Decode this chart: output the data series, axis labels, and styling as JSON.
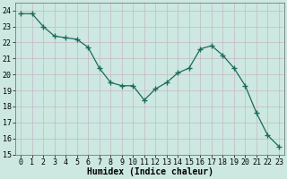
{
  "x": [
    0,
    1,
    2,
    3,
    4,
    5,
    6,
    7,
    8,
    9,
    10,
    11,
    12,
    13,
    14,
    15,
    16,
    17,
    18,
    19,
    20,
    21,
    22,
    23
  ],
  "y": [
    23.8,
    23.8,
    23.0,
    22.4,
    22.3,
    22.2,
    21.7,
    20.4,
    19.5,
    19.3,
    19.3,
    18.4,
    19.1,
    19.5,
    20.1,
    20.4,
    21.6,
    21.8,
    21.2,
    20.4,
    19.3,
    17.6,
    16.2,
    15.5
  ],
  "xlabel": "Humidex (Indice chaleur)",
  "xlim": [
    -0.5,
    23.5
  ],
  "ylim": [
    15,
    24.5
  ],
  "yticks": [
    15,
    16,
    17,
    18,
    19,
    20,
    21,
    22,
    23,
    24
  ],
  "xticks": [
    0,
    1,
    2,
    3,
    4,
    5,
    6,
    7,
    8,
    9,
    10,
    11,
    12,
    13,
    14,
    15,
    16,
    17,
    18,
    19,
    20,
    21,
    22,
    23
  ],
  "line_color": "#1a6b5a",
  "marker_color": "#1a6b5a",
  "bg_color": "#cce8e0",
  "grid_major_color": "#c4b8c8",
  "grid_minor_color": "#c4b8c8",
  "xlabel_fontsize": 7,
  "tick_fontsize": 6
}
